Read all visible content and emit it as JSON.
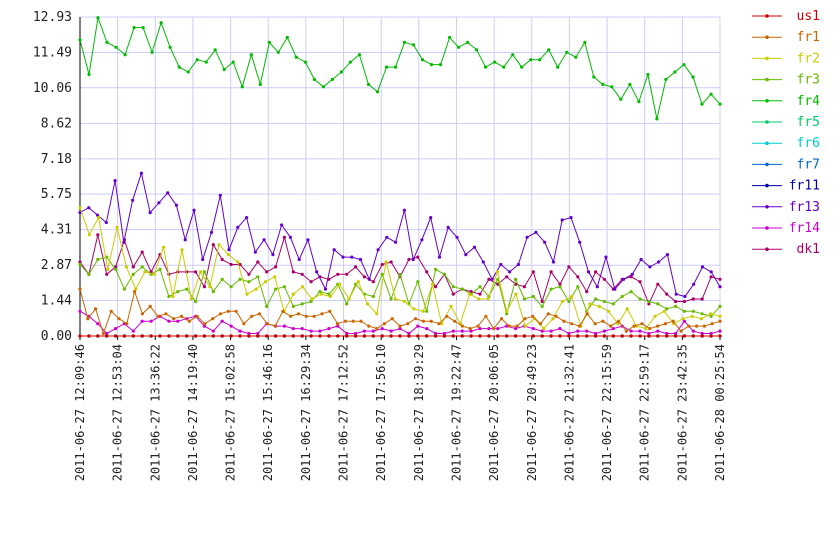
{
  "chart_data": {
    "type": "line",
    "title": "",
    "xlabel": "",
    "ylabel": "",
    "ylim": [
      0,
      12.93
    ],
    "grid": true,
    "legend_position": "right",
    "y_ticks": [
      "0.00",
      "1.44",
      "2.87",
      "4.31",
      "5.75",
      "7.18",
      "8.62",
      "10.06",
      "11.49",
      "12.93"
    ],
    "x_ticks": [
      "2011-06-27 12:09:46",
      "2011-06-27 12:53:04",
      "2011-06-27 13:36:22",
      "2011-06-27 14:19:40",
      "2011-06-27 15:02:58",
      "2011-06-27 15:46:16",
      "2011-06-27 16:29:34",
      "2011-06-27 17:12:52",
      "2011-06-27 17:56:10",
      "2011-06-27 18:39:29",
      "2011-06-27 19:22:47",
      "2011-06-27 20:06:05",
      "2011-06-27 20:49:23",
      "2011-06-27 21:32:41",
      "2011-06-27 22:15:59",
      "2011-06-27 22:59:17",
      "2011-06-27 23:42:35",
      "2011-06-28 00:25:54"
    ],
    "series": [
      {
        "name": "us1",
        "color": "#cc0000",
        "values": [
          0,
          0,
          0,
          0,
          0,
          0,
          0,
          0,
          0,
          0,
          0,
          0,
          0,
          0,
          0,
          0,
          0,
          0,
          0,
          0,
          0,
          0,
          0,
          0,
          0,
          0,
          0,
          0,
          0,
          0,
          0,
          0,
          0,
          0,
          0,
          0,
          0,
          0,
          0,
          0,
          0,
          0,
          0,
          0,
          0,
          0,
          0,
          0,
          0,
          0,
          0,
          0,
          0,
          0,
          0,
          0,
          0,
          0,
          0,
          0,
          0,
          0,
          0,
          0,
          0,
          0,
          0,
          0,
          0,
          0,
          0,
          0,
          0
        ]
      },
      {
        "name": "fr1",
        "color": "#cc6600",
        "values": [
          1.9,
          0.7,
          1.1,
          0.1,
          1.0,
          0.7,
          0.5,
          1.8,
          0.9,
          1.2,
          0.8,
          0.9,
          0.7,
          0.8,
          0.6,
          0.8,
          0.5,
          0.7,
          0.9,
          1.0,
          1.0,
          0.5,
          0.8,
          0.9,
          0.5,
          0.4,
          1.0,
          0.8,
          0.9,
          0.8,
          0.8,
          0.9,
          1.0,
          0.5,
          0.6,
          0.6,
          0.6,
          0.4,
          0.3,
          0.5,
          0.7,
          0.4,
          0.5,
          0.7,
          0.6,
          0.6,
          0.5,
          0.8,
          0.6,
          0.4,
          0.3,
          0.4,
          0.8,
          0.3,
          0.7,
          0.4,
          0.4,
          0.7,
          0.8,
          0.5,
          0.9,
          0.8,
          0.6,
          0.5,
          0.4,
          0.9,
          0.5,
          0.6,
          0.4,
          0.6,
          0.2,
          0.4,
          0.5,
          0.3,
          0.4,
          0.5,
          0.6,
          0.2,
          0.4,
          0.4,
          0.4,
          0.5,
          0.6
        ]
      },
      {
        "name": "fr2",
        "color": "#cccc00",
        "values": [
          5.2,
          4.1,
          4.8,
          2.7,
          4.4,
          2.8,
          1.9,
          2.6,
          2.5,
          3.6,
          1.6,
          3.5,
          1.5,
          2.6,
          2.0,
          3.7,
          3.3,
          3.0,
          1.7,
          1.9,
          2.2,
          2.4,
          1.0,
          1.7,
          2.0,
          1.5,
          1.7,
          1.6,
          2.1,
          1.5,
          2.2,
          1.3,
          0.9,
          3.0,
          1.5,
          1.4,
          1.1,
          1.0,
          2.1,
          0.5,
          1.2,
          0.5,
          1.7,
          1.5,
          1.5,
          2.6,
          1.0,
          1.7,
          0.4,
          0.7,
          0.3,
          0.7,
          1.4,
          1.6,
          0.4,
          1.3,
          1.2,
          1.0,
          0.5,
          1.1,
          0.4,
          0.3,
          0.8,
          1.0,
          0.5,
          0.7,
          0.8,
          0.7,
          0.9,
          0.8
        ]
      },
      {
        "name": "fr3",
        "color": "#66bb00",
        "values": [
          2.9,
          2.5,
          3.1,
          3.2,
          2.7,
          1.9,
          2.5,
          2.8,
          2.5,
          2.7,
          1.6,
          1.8,
          1.9,
          1.4,
          2.6,
          1.8,
          2.3,
          2.0,
          2.3,
          2.2,
          2.4,
          1.2,
          1.9,
          2.0,
          1.2,
          1.3,
          1.4,
          1.8,
          1.7,
          2.1,
          1.3,
          2.1,
          1.7,
          1.6,
          2.5,
          1.5,
          2.5,
          1.3,
          2.2,
          1.0,
          2.7,
          2.5,
          2.0,
          1.9,
          1.7,
          2.0,
          1.6,
          2.3,
          0.9,
          2.3,
          1.5,
          1.6,
          1.2,
          1.9,
          2.0,
          1.4,
          2.0,
          1.0,
          1.5,
          1.4,
          1.3,
          1.6,
          1.8,
          1.5,
          1.4,
          1.3,
          1.1,
          1.2,
          1.0,
          1.0,
          0.9,
          0.8,
          1.2
        ]
      },
      {
        "name": "fr4",
        "color": "#00bb00",
        "values": [
          12.0,
          10.6,
          12.9,
          11.9,
          11.7,
          11.4,
          12.5,
          12.5,
          11.5,
          12.7,
          11.7,
          10.9,
          10.7,
          11.2,
          11.1,
          11.6,
          10.8,
          11.1,
          10.1,
          11.4,
          10.2,
          11.9,
          11.5,
          12.1,
          11.3,
          11.1,
          10.4,
          10.1,
          10.4,
          10.7,
          11.1,
          11.4,
          10.2,
          9.9,
          10.9,
          10.9,
          11.9,
          11.8,
          11.2,
          11.0,
          11.0,
          12.1,
          11.7,
          11.9,
          11.6,
          10.9,
          11.1,
          10.9,
          11.4,
          10.9,
          11.2,
          11.2,
          11.6,
          10.9,
          11.5,
          11.3,
          11.9,
          10.5,
          10.2,
          10.1,
          9.6,
          10.2,
          9.5,
          10.6,
          8.8,
          10.4,
          10.7,
          11.0,
          10.5,
          9.4,
          9.8,
          9.4
        ]
      },
      {
        "name": "fr5",
        "color": "#00cc66",
        "values": [
          0,
          0,
          0,
          0,
          0,
          0,
          0,
          0,
          0,
          0,
          0,
          0,
          0,
          0,
          0,
          0,
          0,
          0,
          0,
          0,
          0,
          0,
          0,
          0,
          0,
          0,
          0,
          0,
          0,
          0,
          0,
          0,
          0,
          0,
          0,
          0,
          0,
          0,
          0,
          0,
          0,
          0,
          0,
          0,
          0,
          0,
          0,
          0,
          0,
          0,
          0,
          0,
          0,
          0,
          0,
          0,
          0,
          0,
          0,
          0,
          0,
          0,
          0,
          0,
          0,
          0,
          0,
          0,
          0,
          0,
          0,
          0,
          0
        ]
      },
      {
        "name": "fr6",
        "color": "#00cccc",
        "values": [
          0,
          0,
          0,
          0,
          0,
          0,
          0,
          0,
          0,
          0,
          0,
          0,
          0,
          0,
          0,
          0,
          0,
          0,
          0,
          0,
          0,
          0,
          0,
          0,
          0,
          0,
          0,
          0,
          0,
          0,
          0,
          0,
          0,
          0,
          0,
          0,
          0,
          0,
          0,
          0,
          0,
          0,
          0,
          0,
          0,
          0,
          0,
          0,
          0,
          0,
          0,
          0,
          0,
          0,
          0,
          0,
          0,
          0,
          0,
          0,
          0,
          0,
          0,
          0,
          0,
          0,
          0,
          0,
          0,
          0,
          0,
          0,
          0
        ]
      },
      {
        "name": "fr7",
        "color": "#0066cc",
        "values": [
          0,
          0,
          0,
          0,
          0,
          0,
          0,
          0,
          0,
          0,
          0,
          0,
          0,
          0,
          0,
          0,
          0,
          0,
          0,
          0,
          0,
          0,
          0,
          0,
          0,
          0,
          0,
          0,
          0,
          0,
          0,
          0,
          0,
          0,
          0,
          0,
          0,
          0,
          0,
          0,
          0,
          0,
          0,
          0,
          0,
          0,
          0,
          0,
          0,
          0,
          0,
          0,
          0,
          0,
          0,
          0,
          0,
          0,
          0,
          0,
          0,
          0,
          0,
          0,
          0,
          0,
          0,
          0,
          0,
          0,
          0,
          0,
          0
        ]
      },
      {
        "name": "fr11",
        "color": "#0000aa",
        "values": [
          0,
          0,
          0,
          0,
          0,
          0,
          0,
          0,
          0,
          0,
          0,
          0,
          0,
          0,
          0,
          0,
          0,
          0,
          0,
          0,
          0,
          0,
          0,
          0,
          0,
          0,
          0,
          0,
          0,
          0,
          0,
          0,
          0,
          0,
          0,
          0,
          0,
          0,
          0,
          0,
          0,
          0,
          0,
          0,
          0,
          0,
          0,
          0,
          0,
          0,
          0,
          0,
          0,
          0,
          0,
          0,
          0,
          0,
          0,
          0,
          0,
          0,
          0,
          0,
          0,
          0,
          0,
          0,
          0,
          0,
          0,
          0,
          0
        ]
      },
      {
        "name": "fr13",
        "color": "#6600cc",
        "values": [
          5.0,
          5.2,
          4.9,
          4.6,
          6.3,
          3.8,
          5.5,
          6.6,
          5.0,
          5.4,
          5.8,
          5.3,
          3.9,
          5.1,
          3.1,
          4.2,
          5.7,
          3.5,
          4.4,
          4.8,
          3.4,
          3.9,
          3.3,
          4.5,
          4.0,
          3.1,
          3.9,
          2.6,
          1.9,
          3.5,
          3.2,
          3.2,
          3.1,
          2.3,
          3.5,
          4.0,
          3.8,
          5.1,
          3.1,
          3.9,
          4.8,
          3.2,
          4.4,
          4.0,
          3.3,
          3.6,
          3.0,
          2.3,
          2.9,
          2.6,
          2.9,
          4.0,
          4.2,
          3.8,
          3.0,
          4.7,
          4.8,
          3.8,
          2.6,
          2.0,
          3.2,
          1.9,
          2.3,
          2.5,
          3.1,
          2.8,
          3.0,
          3.3,
          1.7,
          1.6,
          2.1,
          2.8,
          2.6,
          2.0
        ]
      },
      {
        "name": "fr14",
        "color": "#cc00cc",
        "values": [
          1.0,
          0.8,
          0.5,
          0.1,
          0.3,
          0.5,
          0.2,
          0.6,
          0.6,
          0.8,
          0.6,
          0.6,
          0.7,
          0.8,
          0.4,
          0.2,
          0.6,
          0.4,
          0.2,
          0.1,
          0.1,
          0.5,
          0.4,
          0.4,
          0.3,
          0.3,
          0.2,
          0.2,
          0.3,
          0.4,
          0.1,
          0.1,
          0.2,
          0.2,
          0.3,
          0.2,
          0.3,
          0.1,
          0.4,
          0.3,
          0.1,
          0.1,
          0.2,
          0.2,
          0.2,
          0.3,
          0.3,
          0.3,
          0.4,
          0.3,
          0.4,
          0.3,
          0.2,
          0.2,
          0.3,
          0.1,
          0.2,
          0.2,
          0.1,
          0.2,
          0.3,
          0.4,
          0.2,
          0.2,
          0.1,
          0.2,
          0.1,
          0.1,
          0.6,
          0.2,
          0.1,
          0.1,
          0.2
        ]
      },
      {
        "name": "dk1",
        "color": "#aa0066",
        "values": [
          3.0,
          2.5,
          4.1,
          2.5,
          2.8,
          3.9,
          2.8,
          3.4,
          2.6,
          3.3,
          2.5,
          2.6,
          2.6,
          2.6,
          2.0,
          3.7,
          3.1,
          2.9,
          2.9,
          2.5,
          3.0,
          2.6,
          2.8,
          4.0,
          2.6,
          2.5,
          2.2,
          2.4,
          2.3,
          2.5,
          2.5,
          2.8,
          2.4,
          2.2,
          2.9,
          3.0,
          2.4,
          3.1,
          3.2,
          2.6,
          2.0,
          2.5,
          1.7,
          1.9,
          1.8,
          1.7,
          2.3,
          2.1,
          2.4,
          2.1,
          2.0,
          2.6,
          1.4,
          2.6,
          2.1,
          2.8,
          2.4,
          1.8,
          2.6,
          2.3,
          1.9,
          2.3,
          2.4,
          2.2,
          1.3,
          2.1,
          1.7,
          1.4,
          1.4,
          1.5,
          1.5,
          2.4,
          2.3
        ]
      }
    ]
  }
}
